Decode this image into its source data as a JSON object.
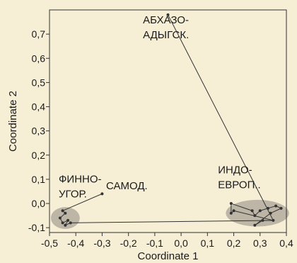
{
  "chart_data": {
    "type": "scatter",
    "xlabel": "Coordinate 1",
    "ylabel": "Coordinate 2",
    "xlim": [
      -0.5,
      0.4
    ],
    "ylim": [
      -0.12,
      0.8
    ],
    "x_ticks": [
      "-0,5",
      "-0,4",
      "-0,3",
      "-0,2",
      "-0,1",
      "0,0",
      "0,1",
      "0,2",
      "0,3",
      "0,4"
    ],
    "x_tick_values": [
      -0.5,
      -0.4,
      -0.3,
      -0.2,
      -0.1,
      0.0,
      0.1,
      0.2,
      0.3,
      0.4
    ],
    "y_ticks": [
      "-0,1",
      "0,0",
      "0,1",
      "0,2",
      "0,3",
      "0,4",
      "0,5",
      "0,6",
      "0,7"
    ],
    "y_tick_values": [
      -0.1,
      0.0,
      0.1,
      0.2,
      0.3,
      0.4,
      0.5,
      0.6,
      0.7
    ],
    "grid": false,
    "colors": {
      "background": "#f6efd6",
      "points": "#333333",
      "cluster_fill": "#b3ab9d",
      "lines": "#333333"
    },
    "points": [
      {
        "x": -0.05,
        "y": 0.78
      },
      {
        "x": 0.35,
        "y": -0.07
      },
      {
        "x": -0.3,
        "y": 0.04
      },
      {
        "x": -0.42,
        "y": -0.08
      },
      {
        "x": -0.45,
        "y": -0.03
      },
      {
        "x": -0.44,
        "y": -0.04
      },
      {
        "x": -0.46,
        "y": -0.06
      },
      {
        "x": -0.45,
        "y": -0.08
      },
      {
        "x": -0.43,
        "y": -0.07
      },
      {
        "x": -0.44,
        "y": -0.09
      },
      {
        "x": 0.2,
        "y": -0.03
      },
      {
        "x": 0.19,
        "y": -0.04
      },
      {
        "x": 0.19,
        "y": 0.0
      },
      {
        "x": 0.27,
        "y": -0.03
      },
      {
        "x": 0.28,
        "y": -0.05
      },
      {
        "x": 0.3,
        "y": -0.03
      },
      {
        "x": 0.33,
        "y": -0.02
      },
      {
        "x": 0.36,
        "y": -0.01
      },
      {
        "x": 0.38,
        "y": -0.02
      },
      {
        "x": 0.34,
        "y": -0.04
      },
      {
        "x": 0.28,
        "y": -0.09
      },
      {
        "x": 0.31,
        "y": -0.07
      }
    ],
    "connections": [
      [
        0,
        1
      ],
      [
        1,
        3
      ],
      [
        2,
        4
      ],
      [
        4,
        5
      ],
      [
        5,
        6
      ],
      [
        6,
        7
      ],
      [
        7,
        8
      ],
      [
        8,
        9
      ],
      [
        9,
        3
      ],
      [
        1,
        10
      ],
      [
        10,
        11
      ],
      [
        11,
        12
      ],
      [
        12,
        13
      ],
      [
        13,
        14
      ],
      [
        14,
        15
      ],
      [
        15,
        16
      ],
      [
        16,
        17
      ],
      [
        17,
        18
      ],
      [
        18,
        19
      ],
      [
        19,
        20
      ],
      [
        20,
        21
      ],
      [
        21,
        1
      ]
    ],
    "clusters": [
      {
        "cx": -0.44,
        "cy": -0.06,
        "rx": 0.055,
        "ry": 0.045
      },
      {
        "cx": 0.29,
        "cy": -0.04,
        "rx": 0.12,
        "ry": 0.055
      }
    ],
    "annotations": [
      {
        "lines": [
          "АБХАЗО-",
          "АДЫГСК."
        ]
      },
      {
        "lines": [
          "ФИННО-",
          "УГОР."
        ]
      },
      {
        "lines": [
          "САМОД."
        ]
      },
      {
        "lines": [
          "ИНДО-",
          "ЕВРОП.."
        ]
      }
    ]
  }
}
